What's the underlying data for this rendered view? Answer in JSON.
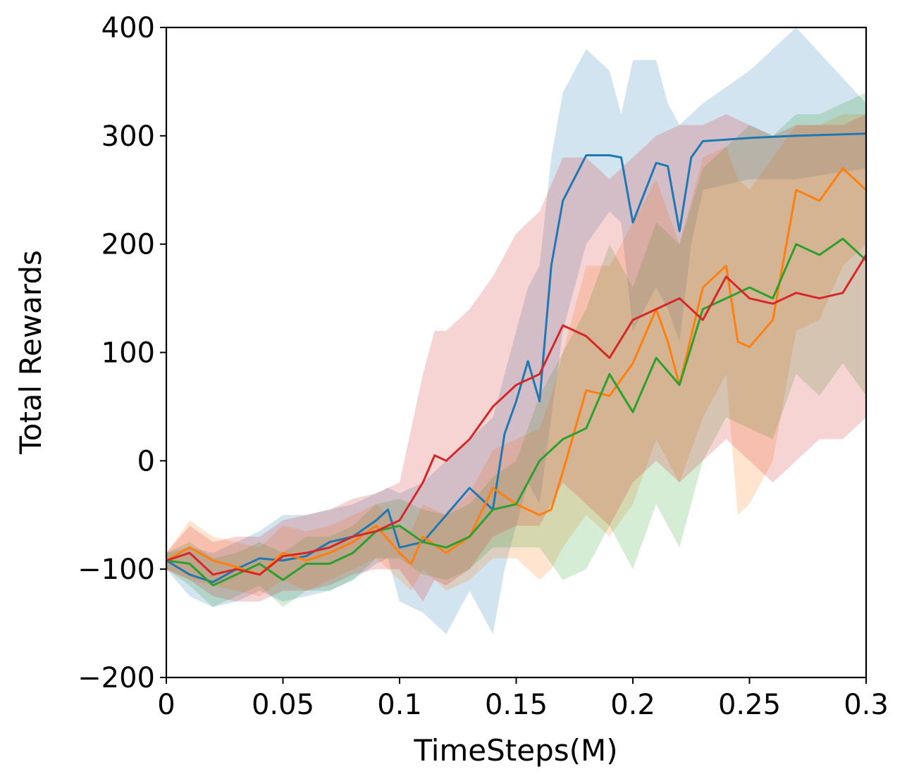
{
  "chart_data": {
    "type": "line",
    "title": "",
    "xlabel": "TimeSteps(M)",
    "ylabel": "Total Rewards",
    "xlim": [
      0,
      0.3
    ],
    "ylim": [
      -200,
      400
    ],
    "grid": false,
    "legend": "none",
    "x_ticks": [
      0,
      0.05,
      0.1,
      0.15,
      0.2,
      0.25,
      0.3
    ],
    "x_tick_labels": [
      "0",
      "0.05",
      "0.1",
      "0.15",
      "0.2",
      "0.25",
      "0.3"
    ],
    "y_ticks": [
      -200,
      -100,
      0,
      100,
      200,
      300,
      400
    ],
    "y_tick_labels": [
      "−200",
      "−100",
      "0",
      "100",
      "200",
      "300",
      "400"
    ],
    "series": [
      {
        "color": "#1f77b4",
        "x": [
          0,
          0.01,
          0.02,
          0.03,
          0.04,
          0.05,
          0.06,
          0.07,
          0.08,
          0.09,
          0.095,
          0.1,
          0.11,
          0.12,
          0.13,
          0.14,
          0.145,
          0.15,
          0.155,
          0.16,
          0.165,
          0.17,
          0.18,
          0.19,
          0.195,
          0.2,
          0.21,
          0.215,
          0.22,
          0.225,
          0.23,
          0.25,
          0.27,
          0.3
        ],
        "y": [
          -92,
          -105,
          -112,
          -100,
          -90,
          -92,
          -88,
          -75,
          -70,
          -55,
          -45,
          -80,
          -75,
          -50,
          -25,
          -45,
          25,
          55,
          92,
          55,
          180,
          240,
          282,
          282,
          280,
          220,
          275,
          272,
          212,
          280,
          295,
          298,
          300,
          302
        ],
        "upper": [
          -85,
          -80,
          -85,
          -75,
          -65,
          -50,
          -50,
          -45,
          -40,
          -30,
          -25,
          -30,
          -20,
          0,
          20,
          40,
          80,
          120,
          160,
          180,
          280,
          340,
          380,
          360,
          320,
          370,
          370,
          330,
          310,
          320,
          330,
          360,
          400,
          330
        ],
        "lower": [
          -100,
          -125,
          -135,
          -130,
          -120,
          -130,
          -125,
          -120,
          -110,
          -95,
          -90,
          -130,
          -140,
          -160,
          -120,
          -160,
          -100,
          -60,
          -20,
          -40,
          40,
          120,
          200,
          230,
          220,
          120,
          160,
          140,
          110,
          200,
          250,
          260,
          260,
          270
        ]
      },
      {
        "color": "#ff7f0e",
        "x": [
          0,
          0.01,
          0.02,
          0.03,
          0.04,
          0.05,
          0.06,
          0.07,
          0.08,
          0.09,
          0.1,
          0.105,
          0.11,
          0.12,
          0.13,
          0.14,
          0.15,
          0.16,
          0.165,
          0.17,
          0.18,
          0.19,
          0.2,
          0.21,
          0.215,
          0.22,
          0.23,
          0.24,
          0.245,
          0.25,
          0.26,
          0.27,
          0.28,
          0.29,
          0.3
        ],
        "y": [
          -92,
          -80,
          -92,
          -98,
          -105,
          -85,
          -92,
          -85,
          -75,
          -60,
          -85,
          -95,
          -70,
          -85,
          -70,
          -25,
          -40,
          -50,
          -45,
          -10,
          65,
          60,
          90,
          140,
          110,
          70,
          160,
          180,
          110,
          105,
          130,
          250,
          240,
          270,
          250
        ],
        "upper": [
          -85,
          -55,
          -70,
          -75,
          -80,
          -60,
          -65,
          -60,
          -50,
          -40,
          -60,
          -65,
          -40,
          -50,
          -30,
          10,
          20,
          30,
          60,
          100,
          180,
          180,
          220,
          260,
          230,
          200,
          280,
          290,
          260,
          250,
          280,
          310,
          310,
          320,
          320
        ],
        "lower": [
          -100,
          -110,
          -115,
          -120,
          -125,
          -110,
          -120,
          -110,
          -100,
          -90,
          -110,
          -120,
          -100,
          -120,
          -110,
          -90,
          -90,
          -110,
          -100,
          -80,
          -50,
          -70,
          -40,
          20,
          0,
          -20,
          40,
          80,
          -50,
          -40,
          0,
          120,
          130,
          180,
          200
        ]
      },
      {
        "color": "#2ca02c",
        "x": [
          0,
          0.01,
          0.02,
          0.03,
          0.04,
          0.05,
          0.06,
          0.07,
          0.08,
          0.09,
          0.1,
          0.11,
          0.12,
          0.13,
          0.14,
          0.15,
          0.16,
          0.17,
          0.18,
          0.19,
          0.2,
          0.21,
          0.22,
          0.23,
          0.24,
          0.25,
          0.26,
          0.27,
          0.28,
          0.29,
          0.3
        ],
        "y": [
          -92,
          -95,
          -115,
          -105,
          -95,
          -110,
          -95,
          -95,
          -85,
          -65,
          -60,
          -75,
          -80,
          -70,
          -45,
          -40,
          0,
          20,
          30,
          80,
          45,
          95,
          70,
          140,
          150,
          160,
          150,
          200,
          190,
          205,
          185
        ],
        "upper": [
          -85,
          -75,
          -90,
          -85,
          -75,
          -85,
          -70,
          -70,
          -60,
          -40,
          -35,
          -45,
          -50,
          -40,
          -15,
          0,
          60,
          100,
          140,
          200,
          160,
          220,
          200,
          270,
          290,
          310,
          300,
          320,
          320,
          330,
          340
        ],
        "lower": [
          -100,
          -115,
          -135,
          -125,
          -115,
          -135,
          -120,
          -120,
          -110,
          -90,
          -90,
          -105,
          -110,
          -100,
          -80,
          -80,
          -80,
          -110,
          -100,
          -60,
          -100,
          -40,
          -80,
          0,
          40,
          30,
          20,
          80,
          60,
          90,
          60
        ]
      },
      {
        "color": "#d62728",
        "x": [
          0,
          0.01,
          0.02,
          0.03,
          0.04,
          0.05,
          0.06,
          0.07,
          0.08,
          0.09,
          0.1,
          0.11,
          0.115,
          0.12,
          0.13,
          0.14,
          0.15,
          0.16,
          0.17,
          0.18,
          0.19,
          0.2,
          0.21,
          0.22,
          0.23,
          0.24,
          0.25,
          0.26,
          0.27,
          0.28,
          0.29,
          0.3
        ],
        "y": [
          -92,
          -85,
          -105,
          -100,
          -105,
          -88,
          -85,
          -80,
          -70,
          -65,
          -55,
          -20,
          5,
          0,
          20,
          50,
          70,
          80,
          125,
          115,
          95,
          130,
          140,
          150,
          130,
          170,
          150,
          145,
          155,
          150,
          155,
          190
        ],
        "upper": [
          -85,
          -60,
          -75,
          -70,
          -70,
          -55,
          -50,
          -45,
          -35,
          -30,
          -20,
          80,
          120,
          120,
          140,
          170,
          210,
          230,
          280,
          280,
          260,
          280,
          300,
          310,
          310,
          320,
          310,
          300,
          310,
          310,
          310,
          320
        ],
        "lower": [
          -100,
          -110,
          -125,
          -130,
          -130,
          -120,
          -120,
          -115,
          -105,
          -100,
          -100,
          -130,
          -110,
          -115,
          -100,
          -70,
          -60,
          -60,
          -20,
          -40,
          -60,
          -20,
          0,
          -20,
          0,
          20,
          0,
          -20,
          0,
          20,
          20,
          40
        ]
      }
    ]
  }
}
